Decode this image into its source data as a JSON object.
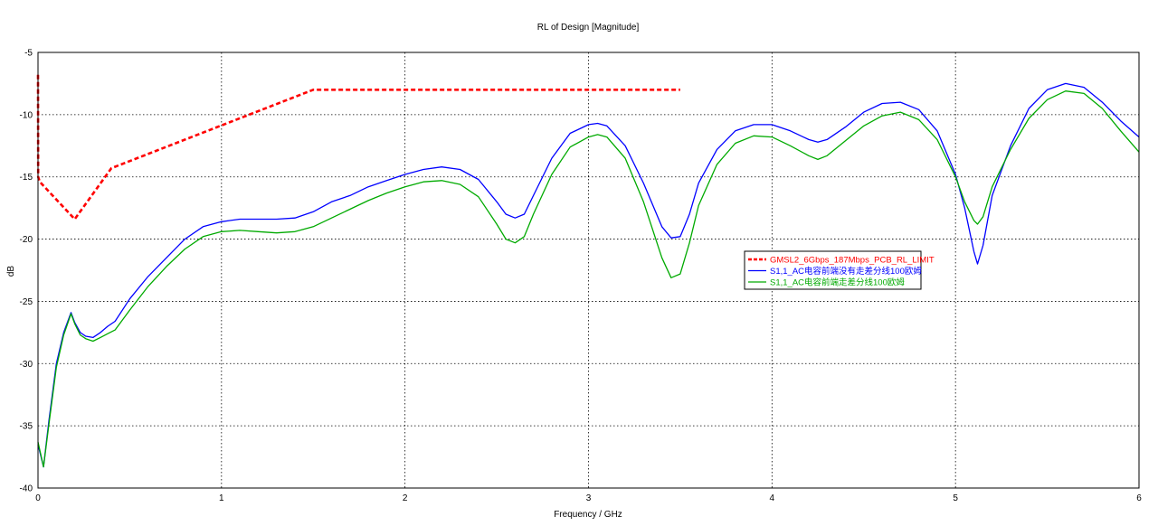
{
  "chart_data": {
    "type": "line",
    "title": "RL of Design [Magnitude]",
    "xlabel": "Frequency / GHz",
    "ylabel": "dB",
    "xlim": [
      0,
      6
    ],
    "ylim": [
      -40,
      -5
    ],
    "xticks": [
      0,
      1,
      2,
      3,
      4,
      5,
      6
    ],
    "yticks": [
      -40,
      -35,
      -30,
      -25,
      -20,
      -15,
      -10,
      -5
    ],
    "grid": true,
    "legend_position": "center-right",
    "series": [
      {
        "name": "GMSL2_6Gbps_187Mbps_PCB_RL_LIMIT",
        "color": "#ff0000",
        "style": "dashed",
        "x": [
          0.0,
          0.001,
          0.01,
          0.2,
          0.4,
          1.5,
          3.5
        ],
        "y": [
          -6.8,
          -15.0,
          -15.4,
          -18.4,
          -14.3,
          -8.0,
          -8.0
        ]
      },
      {
        "name": "S1,1_AC电容前端没有走差分线100欧姆",
        "color": "#0000ff",
        "style": "solid",
        "x": [
          0.0,
          0.03,
          0.06,
          0.1,
          0.14,
          0.18,
          0.2,
          0.23,
          0.26,
          0.3,
          0.34,
          0.38,
          0.42,
          0.5,
          0.6,
          0.7,
          0.8,
          0.9,
          1.0,
          1.1,
          1.2,
          1.3,
          1.4,
          1.5,
          1.6,
          1.7,
          1.8,
          1.9,
          2.0,
          2.1,
          2.2,
          2.3,
          2.4,
          2.5,
          2.55,
          2.6,
          2.65,
          2.7,
          2.8,
          2.9,
          3.0,
          3.05,
          3.1,
          3.2,
          3.3,
          3.4,
          3.45,
          3.5,
          3.55,
          3.6,
          3.7,
          3.8,
          3.9,
          4.0,
          4.1,
          4.2,
          4.25,
          4.3,
          4.4,
          4.5,
          4.6,
          4.7,
          4.8,
          4.9,
          5.0,
          5.05,
          5.1,
          5.12,
          5.15,
          5.2,
          5.3,
          5.4,
          5.5,
          5.6,
          5.7,
          5.8,
          5.9,
          6.0
        ],
        "y": [
          -36.5,
          -38.3,
          -34.5,
          -30.0,
          -27.5,
          -25.9,
          -26.7,
          -27.5,
          -27.8,
          -27.9,
          -27.5,
          -27.0,
          -26.6,
          -24.8,
          -23.0,
          -21.5,
          -20.0,
          -19.0,
          -18.6,
          -18.4,
          -18.4,
          -18.4,
          -18.3,
          -17.8,
          -17.0,
          -16.5,
          -15.8,
          -15.3,
          -14.8,
          -14.4,
          -14.2,
          -14.4,
          -15.2,
          -17.0,
          -18.0,
          -18.3,
          -18.0,
          -16.5,
          -13.5,
          -11.5,
          -10.8,
          -10.7,
          -10.9,
          -12.5,
          -15.5,
          -19.0,
          -19.9,
          -19.8,
          -18.0,
          -15.5,
          -12.8,
          -11.3,
          -10.8,
          -10.8,
          -11.3,
          -12.0,
          -12.2,
          -12.0,
          -11.0,
          -9.8,
          -9.1,
          -9.0,
          -9.6,
          -11.3,
          -14.8,
          -17.5,
          -21.0,
          -22.0,
          -20.5,
          -16.5,
          -12.5,
          -9.5,
          -8.0,
          -7.5,
          -7.8,
          -9.0,
          -10.5,
          -11.8
        ]
      },
      {
        "name": "S1,1_AC电容前端走差分线100欧姆",
        "color": "#00aa00",
        "style": "solid",
        "x": [
          0.0,
          0.03,
          0.06,
          0.1,
          0.14,
          0.18,
          0.2,
          0.23,
          0.26,
          0.3,
          0.34,
          0.38,
          0.42,
          0.5,
          0.6,
          0.7,
          0.8,
          0.9,
          1.0,
          1.1,
          1.2,
          1.3,
          1.4,
          1.5,
          1.6,
          1.7,
          1.8,
          1.9,
          2.0,
          2.1,
          2.2,
          2.3,
          2.4,
          2.5,
          2.55,
          2.6,
          2.65,
          2.7,
          2.8,
          2.9,
          3.0,
          3.05,
          3.1,
          3.2,
          3.3,
          3.4,
          3.45,
          3.5,
          3.55,
          3.6,
          3.7,
          3.8,
          3.9,
          4.0,
          4.1,
          4.2,
          4.25,
          4.3,
          4.4,
          4.5,
          4.6,
          4.7,
          4.8,
          4.9,
          5.0,
          5.05,
          5.1,
          5.12,
          5.15,
          5.2,
          5.3,
          5.4,
          5.5,
          5.6,
          5.7,
          5.8,
          5.9,
          6.0
        ],
        "y": [
          -36.3,
          -38.3,
          -34.8,
          -30.3,
          -27.7,
          -26.0,
          -26.8,
          -27.7,
          -28.0,
          -28.2,
          -27.9,
          -27.6,
          -27.3,
          -25.7,
          -23.8,
          -22.2,
          -20.8,
          -19.8,
          -19.4,
          -19.3,
          -19.4,
          -19.5,
          -19.4,
          -19.0,
          -18.3,
          -17.6,
          -16.9,
          -16.3,
          -15.8,
          -15.4,
          -15.3,
          -15.6,
          -16.6,
          -18.8,
          -20.0,
          -20.3,
          -19.8,
          -18.0,
          -14.8,
          -12.6,
          -11.8,
          -11.6,
          -11.8,
          -13.5,
          -17.0,
          -21.5,
          -23.1,
          -22.8,
          -20.3,
          -17.3,
          -14.0,
          -12.3,
          -11.7,
          -11.8,
          -12.5,
          -13.3,
          -13.6,
          -13.3,
          -12.1,
          -10.9,
          -10.1,
          -9.8,
          -10.4,
          -12.0,
          -15.0,
          -17.0,
          -18.5,
          -18.8,
          -18.2,
          -15.8,
          -12.8,
          -10.3,
          -8.8,
          -8.1,
          -8.3,
          -9.5,
          -11.3,
          -13.0
        ]
      }
    ]
  }
}
